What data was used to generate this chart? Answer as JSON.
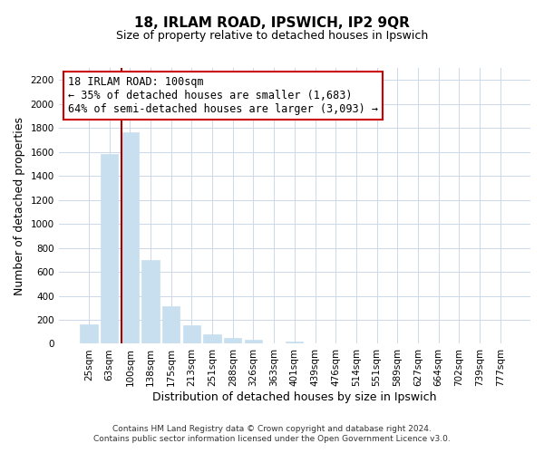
{
  "title_line1": "18, IRLAM ROAD, IPSWICH, IP2 9QR",
  "title_line2": "Size of property relative to detached houses in Ipswich",
  "xlabel": "Distribution of detached houses by size in Ipswich",
  "ylabel": "Number of detached properties",
  "categories": [
    "25sqm",
    "63sqm",
    "100sqm",
    "138sqm",
    "175sqm",
    "213sqm",
    "251sqm",
    "288sqm",
    "326sqm",
    "363sqm",
    "401sqm",
    "439sqm",
    "476sqm",
    "514sqm",
    "551sqm",
    "589sqm",
    "627sqm",
    "664sqm",
    "702sqm",
    "739sqm",
    "777sqm"
  ],
  "values": [
    160,
    1580,
    1760,
    700,
    315,
    155,
    80,
    50,
    30,
    0,
    20,
    0,
    0,
    0,
    0,
    0,
    0,
    0,
    0,
    0,
    0
  ],
  "bar_color": "#c8dff0",
  "highlight_index": 2,
  "ylim": [
    0,
    2300
  ],
  "yticks": [
    0,
    200,
    400,
    600,
    800,
    1000,
    1200,
    1400,
    1600,
    1800,
    2000,
    2200
  ],
  "annotation_title": "18 IRLAM ROAD: 100sqm",
  "annotation_line1": "← 35% of detached houses are smaller (1,683)",
  "annotation_line2": "64% of semi-detached houses are larger (3,093) →",
  "annotation_box_color": "#ffffff",
  "annotation_box_edge": "#cc0000",
  "red_line_color": "#aa0000",
  "footer_line1": "Contains HM Land Registry data © Crown copyright and database right 2024.",
  "footer_line2": "Contains public sector information licensed under the Open Government Licence v3.0.",
  "background_color": "#ffffff",
  "grid_color": "#ccd8e8",
  "title1_fontsize": 11,
  "title2_fontsize": 9,
  "ylabel_fontsize": 9,
  "xlabel_fontsize": 9,
  "tick_fontsize": 7.5,
  "ann_fontsize": 8.5,
  "footer_fontsize": 6.5
}
